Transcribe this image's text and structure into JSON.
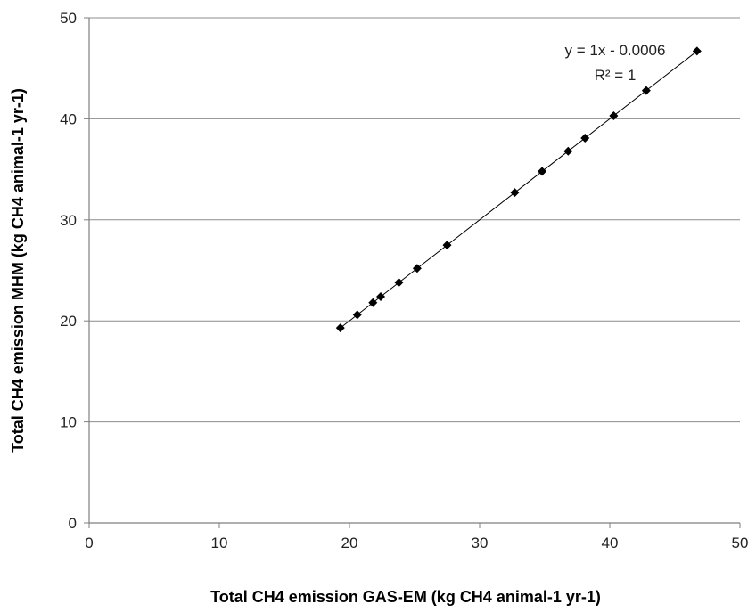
{
  "chart_data": {
    "type": "scatter",
    "xlabel": "Total CH4 emission GAS-EM (kg CH4 animal-1 yr-1)",
    "ylabel": "Total CH4 emission MHM (kg CH4 animal-1 yr-1)",
    "xlim": [
      0,
      50
    ],
    "ylim": [
      0,
      50
    ],
    "xticks": [
      "0",
      "10",
      "20",
      "30",
      "40",
      "50"
    ],
    "yticks": [
      "0",
      "10",
      "20",
      "30",
      "40",
      "50"
    ],
    "grid": "horizontal",
    "marker_color": "#000000",
    "points": [
      {
        "x": 19.3,
        "y": 19.3
      },
      {
        "x": 20.6,
        "y": 20.6
      },
      {
        "x": 21.8,
        "y": 21.8
      },
      {
        "x": 22.4,
        "y": 22.4
      },
      {
        "x": 23.8,
        "y": 23.8
      },
      {
        "x": 25.2,
        "y": 25.2
      },
      {
        "x": 27.5,
        "y": 27.5
      },
      {
        "x": 32.7,
        "y": 32.7
      },
      {
        "x": 34.8,
        "y": 34.8
      },
      {
        "x": 36.8,
        "y": 36.8
      },
      {
        "x": 38.1,
        "y": 38.1
      },
      {
        "x": 40.3,
        "y": 40.3
      },
      {
        "x": 42.8,
        "y": 42.8
      },
      {
        "x": 46.7,
        "y": 46.7
      }
    ],
    "trendline": {
      "slope": 1,
      "intercept": -0.0006,
      "x_start": 19.3,
      "x_end": 46.7,
      "equation_label": "y = 1x - 0.0006",
      "r2_label": "R² = 1"
    }
  }
}
